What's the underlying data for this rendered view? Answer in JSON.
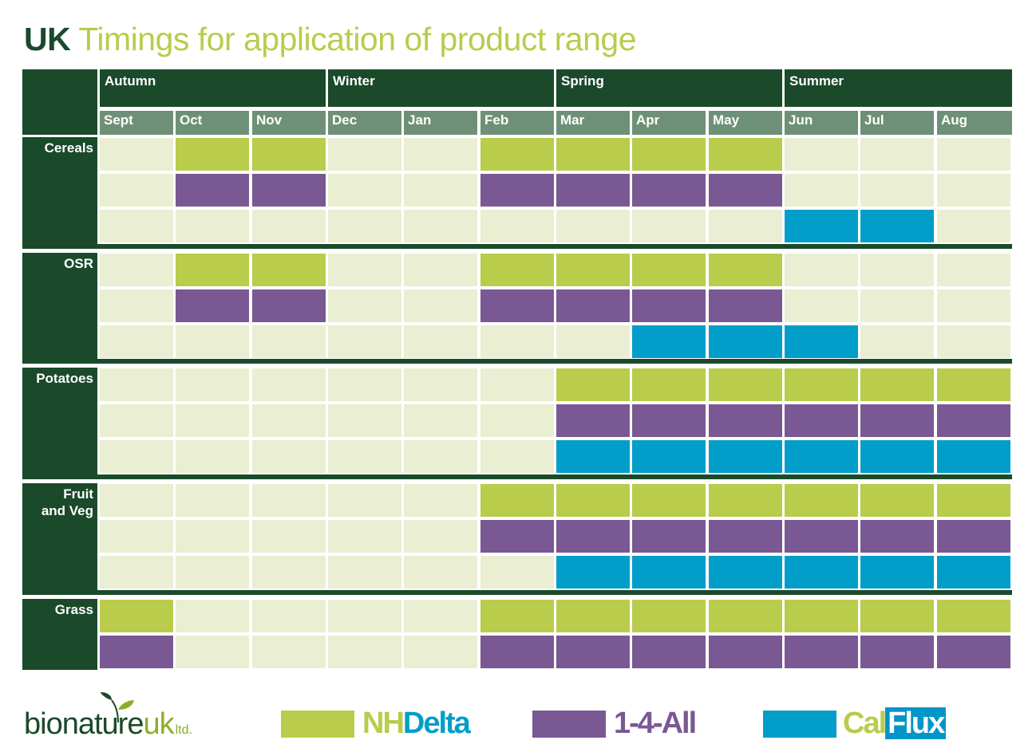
{
  "title": {
    "bold": "UK",
    "rest": "Timings for application of product range"
  },
  "colors": {
    "dark_green": "#1a4a2a",
    "month_header": "#6f9078",
    "empty": "#eaeed2",
    "NHDelta": "#b9cc4b",
    "1-4-All": "#795894",
    "CalFlux": "#009ec9"
  },
  "chart_data": {
    "type": "table",
    "seasons": [
      {
        "name": "Autumn",
        "months": 3
      },
      {
        "name": "Winter",
        "months": 3
      },
      {
        "name": "Spring",
        "months": 3
      },
      {
        "name": "Summer",
        "months": 3
      }
    ],
    "months": [
      "Sept",
      "Oct",
      "Nov",
      "Dec",
      "Jan",
      "Feb",
      "Mar",
      "Apr",
      "May",
      "Jun",
      "Jul",
      "Aug"
    ],
    "crops": [
      {
        "name": "Cereals",
        "rows": [
          {
            "product": "NHDelta",
            "months": [
              "Oct",
              "Nov",
              "Feb",
              "Mar",
              "Apr",
              "May"
            ]
          },
          {
            "product": "1-4-All",
            "months": [
              "Oct",
              "Nov",
              "Feb",
              "Mar",
              "Apr",
              "May"
            ]
          },
          {
            "product": "CalFlux",
            "months": [
              "Jun",
              "Jul"
            ]
          }
        ]
      },
      {
        "name": "OSR",
        "rows": [
          {
            "product": "NHDelta",
            "months": [
              "Oct",
              "Nov",
              "Feb",
              "Mar",
              "Apr",
              "May"
            ]
          },
          {
            "product": "1-4-All",
            "months": [
              "Oct",
              "Nov",
              "Feb",
              "Mar",
              "Apr",
              "May"
            ]
          },
          {
            "product": "CalFlux",
            "months": [
              "Apr",
              "May",
              "Jun"
            ]
          }
        ]
      },
      {
        "name": "Potatoes",
        "rows": [
          {
            "product": "NHDelta",
            "months": [
              "Mar",
              "Apr",
              "May",
              "Jun",
              "Jul",
              "Aug"
            ]
          },
          {
            "product": "1-4-All",
            "months": [
              "Mar",
              "Apr",
              "May",
              "Jun",
              "Jul",
              "Aug"
            ]
          },
          {
            "product": "CalFlux",
            "months": [
              "Mar",
              "Apr",
              "May",
              "Jun",
              "Jul",
              "Aug"
            ]
          }
        ]
      },
      {
        "name": "Fruit\nand Veg",
        "rows": [
          {
            "product": "NHDelta",
            "months": [
              "Feb",
              "Mar",
              "Apr",
              "May",
              "Jun",
              "Jul",
              "Aug"
            ]
          },
          {
            "product": "1-4-All",
            "months": [
              "Feb",
              "Mar",
              "Apr",
              "May",
              "Jun",
              "Jul",
              "Aug"
            ]
          },
          {
            "product": "CalFlux",
            "months": [
              "Mar",
              "Apr",
              "May",
              "Jun",
              "Jul",
              "Aug"
            ]
          }
        ]
      },
      {
        "name": "Grass",
        "rows": [
          {
            "product": "NHDelta",
            "months": [
              "Sept",
              "Feb",
              "Mar",
              "Apr",
              "May",
              "Jun",
              "Jul",
              "Aug"
            ]
          },
          {
            "product": "1-4-All",
            "months": [
              "Sept",
              "Feb",
              "Mar",
              "Apr",
              "May",
              "Jun",
              "Jul",
              "Aug"
            ]
          }
        ]
      }
    ],
    "legend": [
      "NHDelta",
      "1-4-All",
      "CalFlux"
    ]
  },
  "footer": {
    "logo": {
      "main": "bionature",
      "uk": "uk",
      "ltd": "ltd."
    },
    "legend": [
      {
        "key": "NHDelta",
        "part1": "NH",
        "part2": "Delta",
        "part1_color": "#b9cc4b",
        "part2_color": "#009ec9"
      },
      {
        "key": "1-4-All",
        "part1": "1-4-All",
        "part2": "",
        "part1_color": "#795894",
        "part2_color": "#795894"
      },
      {
        "key": "CalFlux",
        "part1": "Cal",
        "part2": "Flux",
        "part1_color": "#b9cc4b",
        "part2_color": "#ffffff"
      }
    ]
  }
}
